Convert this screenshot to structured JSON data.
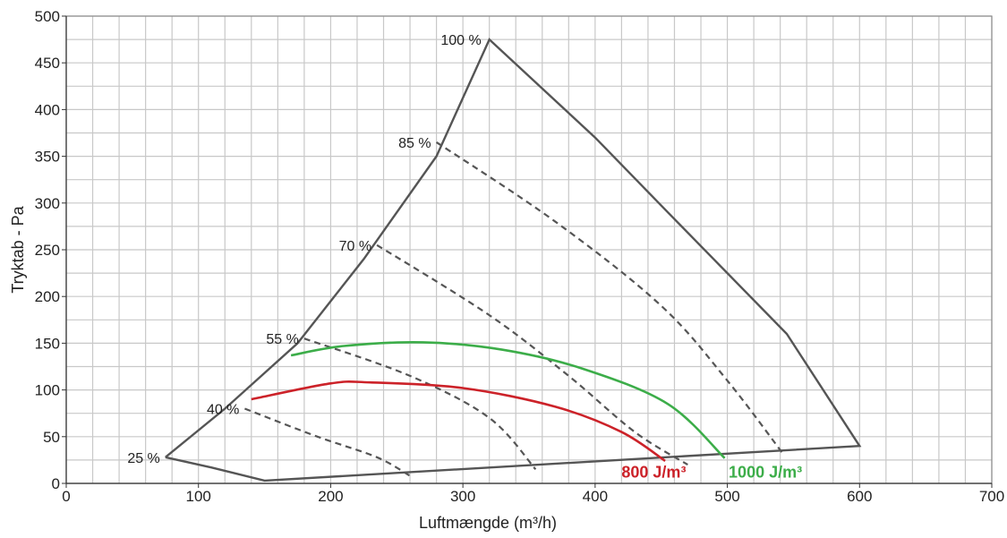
{
  "chart_data": {
    "type": "line",
    "title": "",
    "xlabel": "Luftmængde (m³/h)",
    "ylabel": "Tryktab - Pa",
    "xlim": [
      0,
      700
    ],
    "ylim": [
      0,
      500
    ],
    "x_ticks": [
      0,
      100,
      200,
      300,
      400,
      500,
      600,
      700
    ],
    "y_ticks": [
      0,
      50,
      100,
      150,
      200,
      250,
      300,
      350,
      400,
      450,
      500
    ],
    "x_minor_step": 20,
    "y_minor_step": 25,
    "grid": true,
    "envelope": {
      "color": "#555555",
      "points": [
        [
          75,
          28
        ],
        [
          110,
          17
        ],
        [
          150,
          3
        ],
        [
          600,
          40
        ],
        [
          545,
          160
        ],
        [
          455,
          290
        ],
        [
          400,
          370
        ],
        [
          320,
          475
        ],
        [
          280,
          350
        ],
        [
          225,
          240
        ],
        [
          175,
          150
        ],
        [
          120,
          80
        ],
        [
          75,
          28
        ]
      ]
    },
    "speed_lines": [
      {
        "label": "100 %",
        "points": []
      },
      {
        "label": "85 %",
        "points": [
          [
            280,
            365
          ],
          [
            370,
            280
          ],
          [
            450,
            190
          ],
          [
            500,
            110
          ],
          [
            543,
            30
          ]
        ]
      },
      {
        "label": "70 %",
        "points": [
          [
            235,
            255
          ],
          [
            320,
            180
          ],
          [
            380,
            115
          ],
          [
            430,
            55
          ],
          [
            470,
            20
          ]
        ]
      },
      {
        "label": "55 %",
        "points": [
          [
            180,
            155
          ],
          [
            260,
            115
          ],
          [
            320,
            70
          ],
          [
            355,
            15
          ]
        ]
      },
      {
        "label": "40 %",
        "points": [
          [
            135,
            80
          ],
          [
            190,
            50
          ],
          [
            235,
            28
          ],
          [
            260,
            8
          ]
        ]
      },
      {
        "label": "25 %",
        "points": []
      }
    ],
    "series": [
      {
        "name": "800 J/m³",
        "color": "#cc2229",
        "points": [
          [
            140,
            90
          ],
          [
            200,
            107
          ],
          [
            230,
            108
          ],
          [
            300,
            102
          ],
          [
            370,
            82
          ],
          [
            420,
            55
          ],
          [
            453,
            24
          ]
        ]
      },
      {
        "name": "1000 J/m³",
        "color": "#3cad49",
        "points": [
          [
            170,
            137
          ],
          [
            210,
            147
          ],
          [
            270,
            151
          ],
          [
            330,
            143
          ],
          [
            390,
            123
          ],
          [
            455,
            85
          ],
          [
            498,
            27
          ]
        ]
      }
    ]
  }
}
